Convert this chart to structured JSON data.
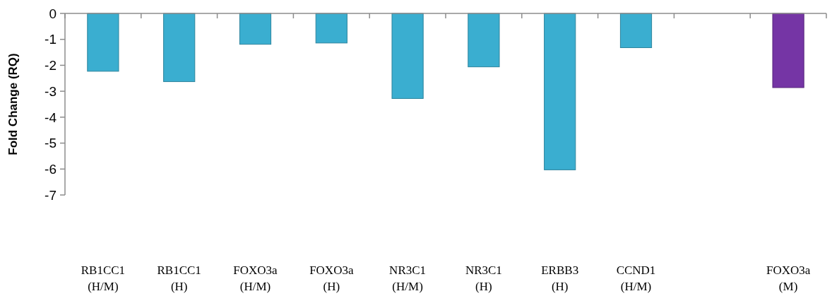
{
  "chart_data": {
    "type": "bar",
    "ylabel": "Fold Change (RQ)",
    "categories": [
      "RB1CC1 (H/M)",
      "RB1CC1 (H)",
      "FOXO3a (H/M)",
      "FOXO3a (H)",
      "NR3C1 (H/M)",
      "NR3C1 (H)",
      "ERBB3 (H)",
      "CCND1 (H/M)",
      null,
      "FOXO3a (M)"
    ],
    "values": [
      -2.23,
      -2.63,
      -1.19,
      -1.14,
      -3.28,
      -2.06,
      -6.03,
      -1.32,
      null,
      -2.86
    ],
    "colors": [
      "#3aaed0",
      "#3aaed0",
      "#3aaed0",
      "#3aaed0",
      "#3aaed0",
      "#3aaed0",
      "#3aaed0",
      "#3aaed0",
      null,
      "#7535a5"
    ],
    "ylim": [
      -7,
      0
    ],
    "yticks": [
      0,
      -1,
      -2,
      -3,
      -4,
      -5,
      -6,
      -7
    ],
    "grid": false
  }
}
